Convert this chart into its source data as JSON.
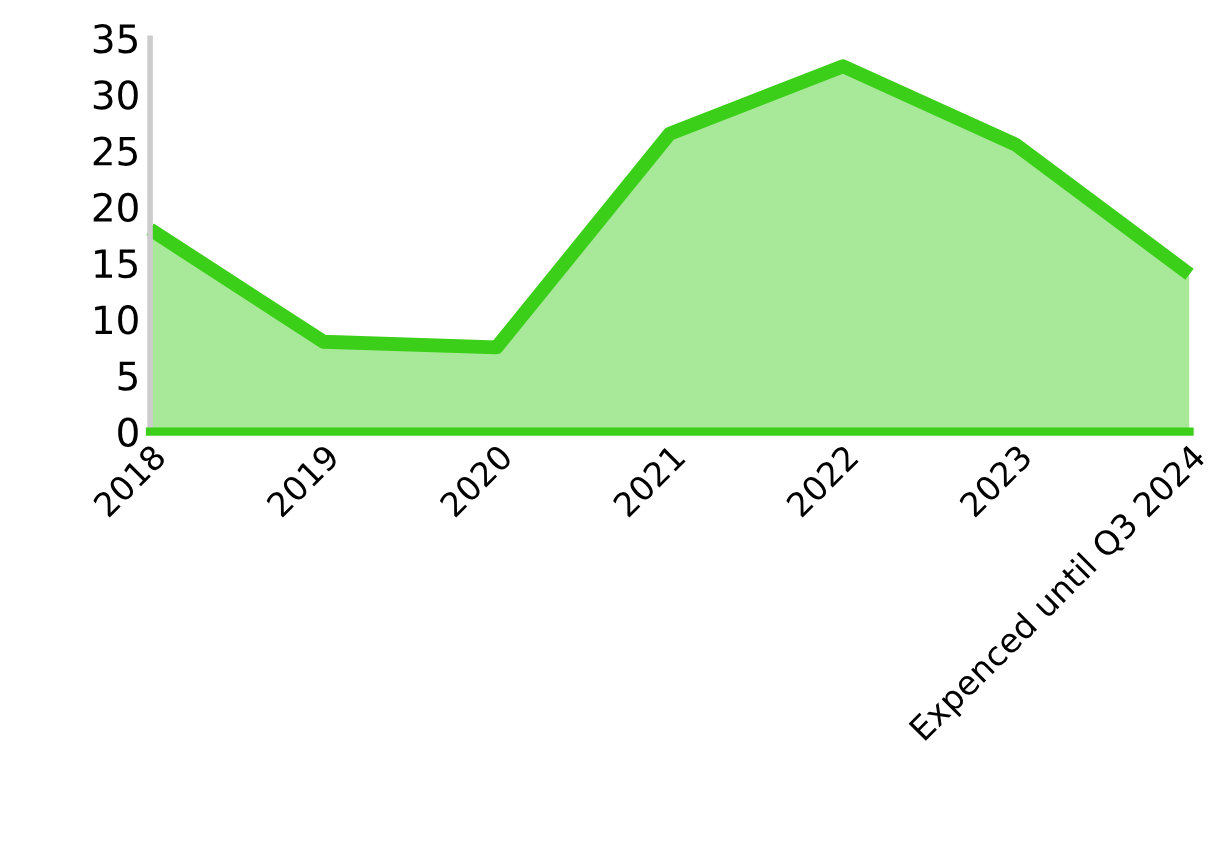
{
  "chart_data": {
    "type": "area",
    "categories": [
      "2018",
      "2019",
      "2020",
      "2021",
      "2022",
      "2023",
      "Expenced until Q3 2024"
    ],
    "series": [
      {
        "color": "#3ccf1a",
        "values": [
          18,
          8,
          7.5,
          26.5,
          32.5,
          25.5,
          14
        ]
      }
    ],
    "ylim": [
      0,
      35
    ],
    "yticks": [
      0,
      5,
      10,
      15,
      20,
      25,
      30,
      35
    ],
    "grid": false,
    "legend": false
  }
}
